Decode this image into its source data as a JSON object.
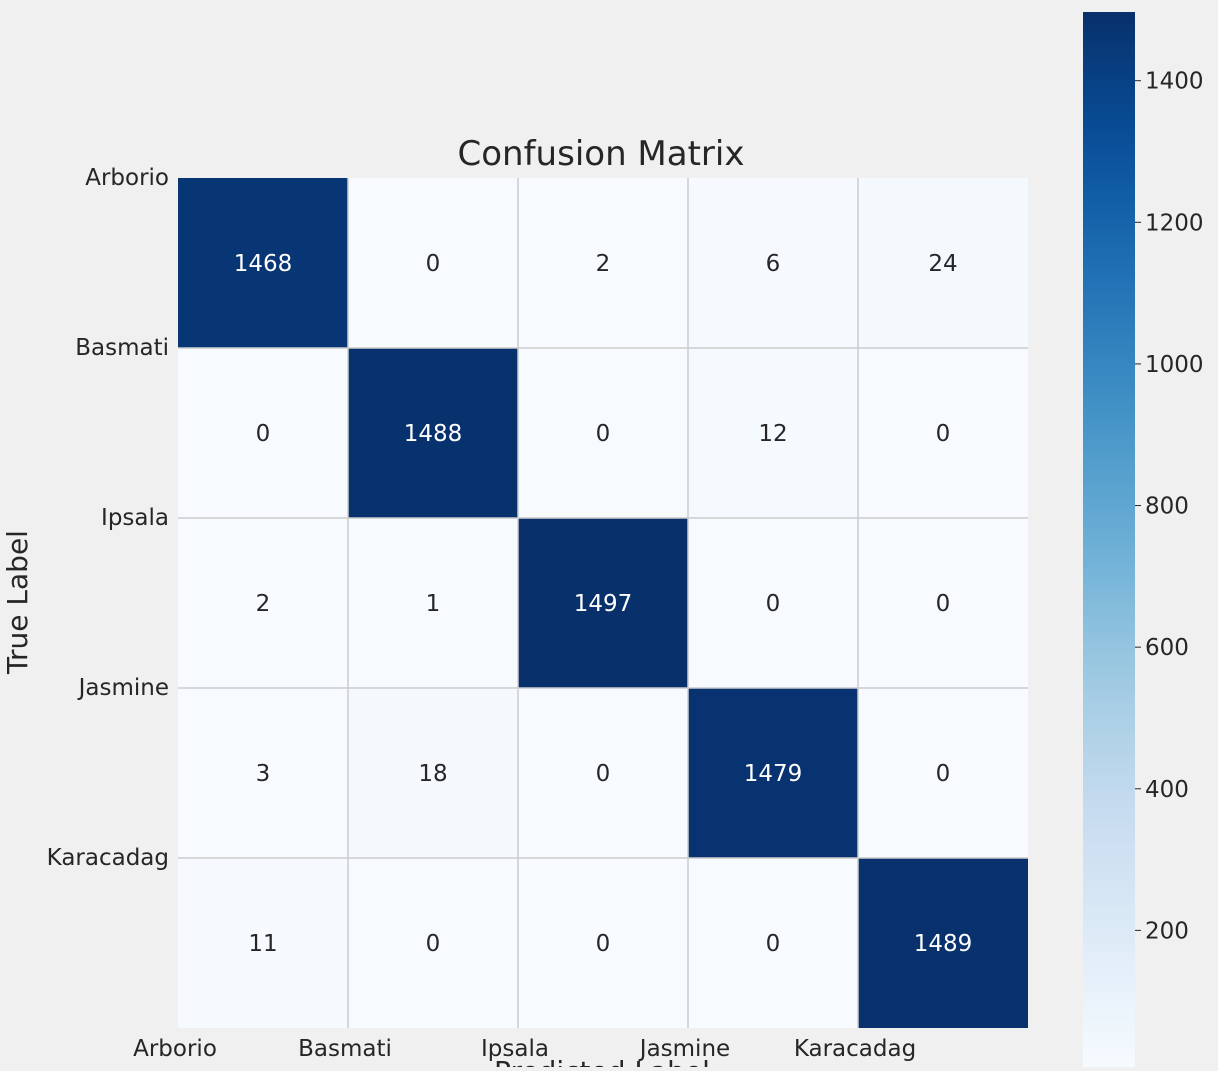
{
  "chart_data": {
    "type": "heatmap",
    "title": "Confusion Matrix",
    "ylabel": "True Label",
    "xlabel": "Predicted Label",
    "row_labels": [
      "Arborio",
      "Basmati",
      "Ipsala",
      "Jasmine",
      "Karacadag"
    ],
    "col_labels": [
      "Arborio",
      "Basmati",
      "Ipsala",
      "Jasmine",
      "Karacadag"
    ],
    "values": [
      [
        1468,
        0,
        2,
        6,
        24
      ],
      [
        0,
        1488,
        0,
        12,
        0
      ],
      [
        2,
        1,
        1497,
        0,
        0
      ],
      [
        3,
        18,
        0,
        1479,
        0
      ],
      [
        11,
        0,
        0,
        0,
        1489
      ]
    ],
    "colormap": "Blues",
    "colorbar": {
      "min": 0,
      "max": 1497,
      "ticks": [
        200,
        400,
        600,
        800,
        1000,
        1200,
        1400
      ]
    },
    "grid": true,
    "colors": {
      "background": "#f0f0f0",
      "grid": "#cccccc",
      "text_dark": "#262626",
      "text_light": "#ffffff"
    }
  }
}
